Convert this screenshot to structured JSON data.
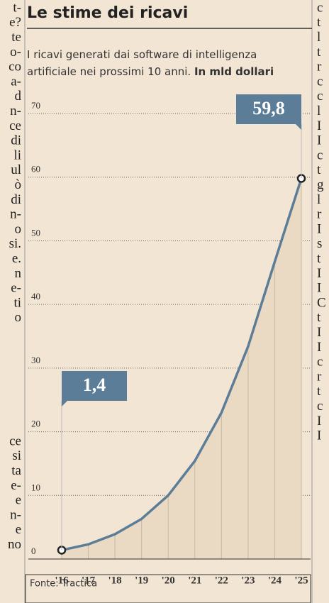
{
  "left_column_top": [
    "t-",
    "e?",
    "te",
    "o-",
    "co",
    "a-",
    "d",
    "n-",
    "ce",
    "di",
    "li",
    "ul",
    "ò",
    "di",
    "n-",
    "o",
    "si.",
    "e.",
    "n",
    "e-",
    "ti",
    "o"
  ],
  "left_column_bottom": [
    "ce",
    "si",
    "ta",
    "e-",
    "e",
    "n-",
    "e",
    "no"
  ],
  "right_column": [
    "c",
    "t",
    "l",
    "t",
    "r",
    "c",
    "c",
    "l",
    "I",
    "I",
    "c",
    "t",
    "g",
    "l",
    "r",
    "I",
    "s",
    "t",
    "I",
    "I",
    "C",
    "t",
    "I",
    "I",
    "c",
    "r",
    "t",
    "c",
    "I",
    "I"
  ],
  "chart_data": {
    "type": "area-line",
    "title": "Le stime dei ricavi",
    "subtitle": "I ricavi generati dai software di intelligenza artificiale nei prossimi 10 anni.",
    "unit_note": "In mld dollari",
    "categories": [
      "'16",
      "'17",
      "'18",
      "'19",
      "'20",
      "'21",
      "'22",
      "'23",
      "'24",
      "'25"
    ],
    "values": [
      1.4,
      2.3,
      3.9,
      6.3,
      10.0,
      15.4,
      23.0,
      33.4,
      46.7,
      59.8
    ],
    "value_labels": [
      "1,4",
      null,
      null,
      null,
      null,
      null,
      null,
      null,
      null,
      "59,8"
    ],
    "color": "#5b7d98",
    "area_color": "#ead9c3",
    "ylim": [
      0,
      70
    ],
    "yticks": [
      0,
      10,
      20,
      30,
      40,
      50,
      60,
      70
    ],
    "grid": true,
    "source": "Fonte: Tractica"
  }
}
